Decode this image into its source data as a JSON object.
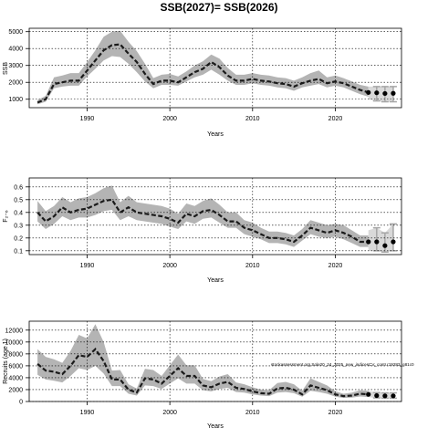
{
  "title": "SSB(2027)= SSB(2026)",
  "annotation": "stockassessment.org Sole20_24_2025_new_indicesCV_contr.r19283_g81c0",
  "chart_data": [
    {
      "type": "line",
      "ylabel": "SSB",
      "xlabel": "Years",
      "xlim": [
        1983,
        2028
      ],
      "ylim": [
        500,
        5200
      ],
      "yticks": [
        1000,
        2000,
        3000,
        4000,
        5000
      ],
      "xticks": [
        1990,
        2000,
        2010,
        2020
      ],
      "grid": true,
      "x": [
        1984,
        1985,
        1986,
        1987,
        1988,
        1989,
        1990,
        1991,
        1992,
        1993,
        1994,
        1995,
        1996,
        1997,
        1998,
        1999,
        2000,
        2001,
        2002,
        2003,
        2004,
        2005,
        2006,
        2007,
        2008,
        2009,
        2010,
        2011,
        2012,
        2013,
        2014,
        2015,
        2016,
        2017,
        2018,
        2019,
        2020,
        2021,
        2022,
        2023,
        2024
      ],
      "estimate": [
        800,
        1000,
        1900,
        2000,
        2100,
        2100,
        2700,
        3300,
        3900,
        4200,
        4250,
        3700,
        3200,
        2500,
        1900,
        2100,
        2100,
        2000,
        2300,
        2600,
        2800,
        3200,
        2900,
        2400,
        2100,
        2100,
        2200,
        2100,
        2050,
        1950,
        1900,
        1750,
        1950,
        2100,
        2200,
        1950,
        2050,
        1950,
        1750,
        1550,
        1400
      ],
      "lower": [
        700,
        850,
        1650,
        1750,
        1800,
        1800,
        2350,
        2800,
        3300,
        3550,
        3500,
        3100,
        2600,
        2050,
        1650,
        1850,
        1850,
        1800,
        2050,
        2300,
        2450,
        2750,
        2450,
        2100,
        1850,
        1850,
        1950,
        1850,
        1800,
        1700,
        1650,
        1500,
        1700,
        1800,
        1900,
        1700,
        1800,
        1700,
        1500,
        1300,
        1150
      ],
      "upper": [
        950,
        1200,
        2300,
        2400,
        2550,
        2550,
        3200,
        3900,
        4700,
        5000,
        5050,
        4400,
        3850,
        3100,
        2250,
        2450,
        2500,
        2350,
        2650,
        3000,
        3250,
        3650,
        3400,
        2850,
        2450,
        2450,
        2550,
        2450,
        2400,
        2300,
        2250,
        2100,
        2300,
        2550,
        2700,
        2300,
        2400,
        2250,
        2050,
        1850,
        1750
      ],
      "forecast": {
        "x": [
          2024,
          2025,
          2026,
          2027
        ],
        "values": [
          1400,
          1380,
          1340,
          1350
        ],
        "lower": [
          1000,
          900,
          850,
          850
        ],
        "upper": [
          1750,
          1750,
          1750,
          1750
        ]
      }
    },
    {
      "type": "line",
      "ylabel": "F₂₋₆",
      "xlabel": "Years",
      "xlim": [
        1983,
        2028
      ],
      "ylim": [
        0.07,
        0.67
      ],
      "yticks": [
        0.1,
        0.2,
        0.3,
        0.4,
        0.5,
        0.6
      ],
      "ytick_labels": [
        "0.1",
        "0.2",
        "0.3",
        "0.4",
        "0.5",
        "0.6"
      ],
      "xticks": [
        1990,
        2000,
        2010,
        2020
      ],
      "grid": true,
      "x": [
        1984,
        1985,
        1986,
        1987,
        1988,
        1989,
        1990,
        1991,
        1992,
        1993,
        1994,
        1995,
        1996,
        1997,
        1998,
        1999,
        2000,
        2001,
        2002,
        2003,
        2004,
        2005,
        2006,
        2007,
        2008,
        2009,
        2010,
        2011,
        2012,
        2013,
        2014,
        2015,
        2016,
        2017,
        2018,
        2019,
        2020,
        2021,
        2022,
        2023,
        2024
      ],
      "estimate": [
        0.4,
        0.33,
        0.37,
        0.44,
        0.4,
        0.42,
        0.43,
        0.46,
        0.49,
        0.5,
        0.4,
        0.44,
        0.4,
        0.39,
        0.38,
        0.37,
        0.35,
        0.32,
        0.39,
        0.37,
        0.41,
        0.42,
        0.38,
        0.33,
        0.33,
        0.28,
        0.26,
        0.23,
        0.2,
        0.2,
        0.19,
        0.17,
        0.22,
        0.28,
        0.26,
        0.24,
        0.26,
        0.24,
        0.21,
        0.17,
        0.17
      ],
      "lower": [
        0.33,
        0.27,
        0.31,
        0.37,
        0.34,
        0.36,
        0.36,
        0.38,
        0.41,
        0.42,
        0.34,
        0.37,
        0.34,
        0.33,
        0.32,
        0.31,
        0.29,
        0.27,
        0.33,
        0.31,
        0.35,
        0.36,
        0.32,
        0.28,
        0.28,
        0.23,
        0.21,
        0.19,
        0.16,
        0.16,
        0.15,
        0.13,
        0.18,
        0.23,
        0.21,
        0.2,
        0.21,
        0.19,
        0.16,
        0.13,
        0.13
      ],
      "upper": [
        0.49,
        0.41,
        0.45,
        0.52,
        0.48,
        0.51,
        0.52,
        0.55,
        0.59,
        0.61,
        0.48,
        0.53,
        0.48,
        0.47,
        0.46,
        0.45,
        0.43,
        0.39,
        0.47,
        0.45,
        0.49,
        0.51,
        0.46,
        0.4,
        0.4,
        0.34,
        0.32,
        0.28,
        0.25,
        0.25,
        0.24,
        0.22,
        0.27,
        0.34,
        0.32,
        0.3,
        0.31,
        0.3,
        0.26,
        0.22,
        0.22
      ],
      "forecast": {
        "x": [
          2024,
          2025,
          2026,
          2027
        ],
        "values": [
          0.17,
          0.17,
          0.14,
          0.17
        ],
        "lower": [
          0.1,
          0.1,
          0.09,
          0.1
        ],
        "upper": [
          0.26,
          0.28,
          0.24,
          0.31
        ]
      }
    },
    {
      "type": "line",
      "ylabel": "Recruits (age 1)",
      "xlabel": "Years",
      "xlim": [
        1983,
        2028
      ],
      "ylim": [
        0,
        13500
      ],
      "yticks": [
        0,
        2000,
        4000,
        6000,
        8000,
        10000,
        12000
      ],
      "xticks": [
        1990,
        2000,
        2010,
        2020
      ],
      "grid": true,
      "x": [
        1984,
        1985,
        1986,
        1987,
        1988,
        1989,
        1990,
        1991,
        1992,
        1993,
        1994,
        1995,
        1996,
        1997,
        1998,
        1999,
        2000,
        2001,
        2002,
        2003,
        2004,
        2005,
        2006,
        2007,
        2008,
        2009,
        2010,
        2011,
        2012,
        2013,
        2014,
        2015,
        2016,
        2017,
        2018,
        2019,
        2020,
        2021,
        2022,
        2023,
        2024
      ],
      "estimate": [
        6300,
        5200,
        5000,
        4600,
        6000,
        7800,
        7500,
        8800,
        6800,
        3700,
        3700,
        2000,
        1500,
        3900,
        3700,
        3000,
        4300,
        5600,
        4300,
        4300,
        2700,
        2400,
        3000,
        3300,
        2300,
        2100,
        1700,
        1400,
        1300,
        2200,
        2300,
        2000,
        1200,
        2700,
        2300,
        1900,
        1200,
        900,
        1000,
        1300,
        1200
      ],
      "lower": [
        4500,
        3700,
        3500,
        3200,
        4300,
        5600,
        5300,
        6000,
        4700,
        2600,
        2600,
        1300,
        1000,
        2700,
        2600,
        2100,
        3000,
        3900,
        3000,
        3000,
        1900,
        1700,
        2100,
        2300,
        1600,
        1500,
        1200,
        1000,
        900,
        1500,
        1600,
        1400,
        800,
        1800,
        1600,
        1300,
        800,
        600,
        650,
        850,
        750
      ],
      "upper": [
        8800,
        7500,
        7100,
        6500,
        8500,
        11200,
        10600,
        13000,
        10000,
        5200,
        5300,
        2900,
        2200,
        5500,
        5300,
        4300,
        6100,
        7900,
        6100,
        6100,
        3800,
        3400,
        4200,
        4600,
        3200,
        2900,
        2400,
        2000,
        1900,
        3100,
        3300,
        2900,
        1800,
        3900,
        3300,
        2700,
        1700,
        1300,
        1500,
        1900,
        1800
      ],
      "forecast": {
        "x": [
          2024,
          2025,
          2026,
          2027
        ],
        "values": [
          1200,
          1000,
          950,
          950
        ],
        "lower": [
          750,
          600,
          550,
          550
        ],
        "upper": [
          1800,
          1500,
          1450,
          1450
        ]
      }
    }
  ]
}
